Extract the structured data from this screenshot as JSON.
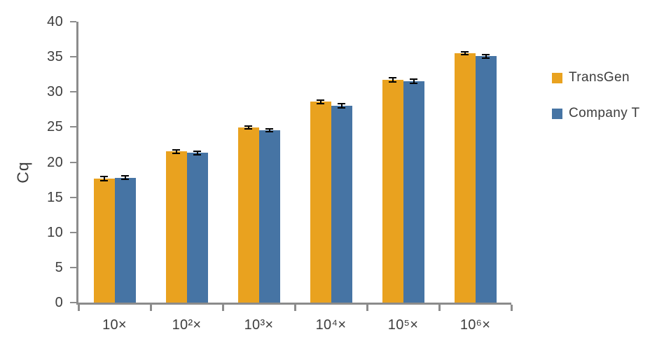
{
  "chart_data": {
    "type": "bar",
    "title": "",
    "xlabel": "",
    "ylabel": "Cq",
    "categories": [
      "10×",
      "10²×",
      "10³×",
      "10⁴×",
      "10⁵×",
      "10⁶×"
    ],
    "series": [
      {
        "name": "TransGen",
        "color": "#E9A21F",
        "values": [
          17.7,
          21.5,
          24.9,
          28.6,
          31.7,
          35.5
        ],
        "errors": [
          0.3,
          0.25,
          0.2,
          0.25,
          0.3,
          0.2
        ]
      },
      {
        "name": "Company T",
        "color": "#4674A4",
        "values": [
          17.8,
          21.3,
          24.5,
          28.0,
          31.5,
          35.1
        ],
        "errors": [
          0.25,
          0.25,
          0.2,
          0.3,
          0.3,
          0.25
        ]
      }
    ],
    "ylim": [
      0,
      40
    ],
    "yticks": [
      0,
      5,
      10,
      15,
      20,
      25,
      30,
      35,
      40
    ],
    "grid": false,
    "legend_position": "right"
  },
  "colors": {
    "axis": "#8C8C8C",
    "text": "#3d3d3d",
    "error_bar": "#000000",
    "background": "#ffffff"
  }
}
